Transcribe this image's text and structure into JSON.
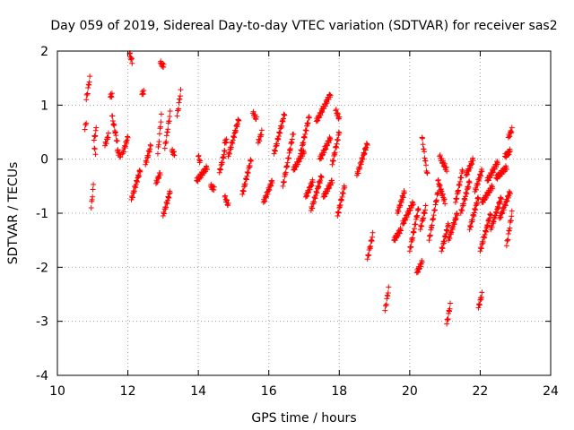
{
  "chart_data": {
    "type": "scatter",
    "title": "Day 059 of 2019, Sidereal Day-to-day VTEC variation (SDTVAR) for receiver sas2",
    "xlabel": "GPS time / hours",
    "ylabel": "SDTVAR / TECUs",
    "xlim": [
      10,
      24
    ],
    "ylim": [
      -4,
      2
    ],
    "xticks": [
      10,
      12,
      14,
      16,
      18,
      20,
      22,
      24
    ],
    "yticks": [
      -4,
      -3,
      -2,
      -1,
      0,
      1,
      2
    ],
    "grid": true,
    "marker": "+",
    "color": "#ff0000",
    "segments": [
      {
        "x0": 10.78,
        "x1": 10.82,
        "y0": 0.55,
        "y1": 0.7
      },
      {
        "x0": 10.82,
        "x1": 10.92,
        "y0": 1.1,
        "y1": 1.5
      },
      {
        "x0": 10.96,
        "x1": 11.02,
        "y0": -0.9,
        "y1": -0.5
      },
      {
        "x0": 11.04,
        "x1": 11.1,
        "y0": 0.35,
        "y1": 0.55
      },
      {
        "x0": 11.05,
        "x1": 11.08,
        "y0": 0.2,
        "y1": 0.1
      },
      {
        "x0": 11.35,
        "x1": 11.45,
        "y0": 0.25,
        "y1": 0.45
      },
      {
        "x0": 11.5,
        "x1": 11.55,
        "y0": 1.15,
        "y1": 1.2
      },
      {
        "x0": 11.55,
        "x1": 11.7,
        "y0": 0.8,
        "y1": 0.3
      },
      {
        "x0": 11.7,
        "x1": 11.8,
        "y0": 0.15,
        "y1": 0.05
      },
      {
        "x0": 11.85,
        "x1": 12.0,
        "y0": 0.1,
        "y1": 0.4
      },
      {
        "x0": 12.05,
        "x1": 12.12,
        "y0": 1.95,
        "y1": 1.8
      },
      {
        "x0": 12.1,
        "x1": 12.35,
        "y0": -0.75,
        "y1": -0.2
      },
      {
        "x0": 12.4,
        "x1": 12.45,
        "y0": 1.2,
        "y1": 1.25
      },
      {
        "x0": 12.5,
        "x1": 12.65,
        "y0": -0.1,
        "y1": 0.25
      },
      {
        "x0": 12.8,
        "x1": 12.92,
        "y0": -0.45,
        "y1": -0.25
      },
      {
        "x0": 12.85,
        "x1": 12.95,
        "y0": 0.1,
        "y1": 0.8
      },
      {
        "x0": 12.92,
        "x1": 13.02,
        "y0": 1.78,
        "y1": 1.72
      },
      {
        "x0": 13.0,
        "x1": 13.2,
        "y0": -1.05,
        "y1": -0.6
      },
      {
        "x0": 13.05,
        "x1": 13.2,
        "y0": 0.2,
        "y1": 0.85
      },
      {
        "x0": 13.25,
        "x1": 13.32,
        "y0": 0.15,
        "y1": 0.1
      },
      {
        "x0": 13.4,
        "x1": 13.5,
        "y0": 0.8,
        "y1": 1.25
      },
      {
        "x0": 13.95,
        "x1": 14.25,
        "y0": -0.4,
        "y1": -0.15
      },
      {
        "x0": 14.0,
        "x1": 14.05,
        "y0": 0.05,
        "y1": -0.05
      },
      {
        "x0": 14.35,
        "x1": 14.45,
        "y0": -0.5,
        "y1": -0.55
      },
      {
        "x0": 14.6,
        "x1": 14.75,
        "y0": -0.25,
        "y1": 0.15
      },
      {
        "x0": 14.75,
        "x1": 14.8,
        "y0": 0.3,
        "y1": 0.35
      },
      {
        "x0": 14.75,
        "x1": 14.85,
        "y0": -0.7,
        "y1": -0.85
      },
      {
        "x0": 14.85,
        "x1": 15.15,
        "y0": 0.05,
        "y1": 0.75
      },
      {
        "x0": 15.25,
        "x1": 15.5,
        "y0": -0.65,
        "y1": 0.0
      },
      {
        "x0": 15.55,
        "x1": 15.65,
        "y0": 0.85,
        "y1": 0.75
      },
      {
        "x0": 15.7,
        "x1": 15.8,
        "y0": 0.3,
        "y1": 0.5
      },
      {
        "x0": 15.85,
        "x1": 16.1,
        "y0": -0.8,
        "y1": -0.4
      },
      {
        "x0": 16.15,
        "x1": 16.45,
        "y0": 0.1,
        "y1": 0.85
      },
      {
        "x0": 16.4,
        "x1": 16.7,
        "y0": -0.5,
        "y1": 0.5
      },
      {
        "x0": 16.7,
        "x1": 17.0,
        "y0": -0.2,
        "y1": 0.15
      },
      {
        "x0": 16.9,
        "x1": 17.15,
        "y0": 0.1,
        "y1": 0.8
      },
      {
        "x0": 17.05,
        "x1": 17.25,
        "y0": -0.7,
        "y1": -0.4
      },
      {
        "x0": 17.2,
        "x1": 17.5,
        "y0": -0.95,
        "y1": -0.3
      },
      {
        "x0": 17.35,
        "x1": 17.75,
        "y0": 0.7,
        "y1": 1.2
      },
      {
        "x0": 17.45,
        "x1": 17.75,
        "y0": 0.0,
        "y1": 0.4
      },
      {
        "x0": 17.55,
        "x1": 17.8,
        "y0": -0.7,
        "y1": -0.4
      },
      {
        "x0": 17.8,
        "x1": 18.0,
        "y0": -0.1,
        "y1": 0.5
      },
      {
        "x0": 17.9,
        "x1": 18.0,
        "y0": 0.9,
        "y1": 0.75
      },
      {
        "x0": 17.95,
        "x1": 18.15,
        "y0": -1.05,
        "y1": -0.5
      },
      {
        "x0": 18.5,
        "x1": 18.8,
        "y0": -0.3,
        "y1": 0.3
      },
      {
        "x0": 18.8,
        "x1": 18.95,
        "y0": -1.85,
        "y1": -1.4
      },
      {
        "x0": 19.3,
        "x1": 19.4,
        "y0": -2.8,
        "y1": -2.4
      },
      {
        "x0": 19.55,
        "x1": 19.75,
        "y0": -1.5,
        "y1": -1.3
      },
      {
        "x0": 19.65,
        "x1": 19.85,
        "y0": -1.0,
        "y1": -0.6
      },
      {
        "x0": 19.8,
        "x1": 20.1,
        "y0": -1.2,
        "y1": -0.8
      },
      {
        "x0": 20.0,
        "x1": 20.25,
        "y0": -1.7,
        "y1": -0.9
      },
      {
        "x0": 20.2,
        "x1": 20.35,
        "y0": -2.1,
        "y1": -1.9
      },
      {
        "x0": 20.3,
        "x1": 20.45,
        "y0": -1.3,
        "y1": -0.9
      },
      {
        "x0": 20.35,
        "x1": 20.5,
        "y0": 0.4,
        "y1": -0.3
      },
      {
        "x0": 20.55,
        "x1": 20.8,
        "y0": -1.5,
        "y1": -0.6
      },
      {
        "x0": 20.8,
        "x1": 21.0,
        "y0": -0.4,
        "y1": -0.8
      },
      {
        "x0": 20.85,
        "x1": 21.05,
        "y0": 0.05,
        "y1": -0.2
      },
      {
        "x0": 20.9,
        "x1": 21.1,
        "y0": -1.7,
        "y1": -1.2
      },
      {
        "x0": 21.05,
        "x1": 21.15,
        "y0": -3.05,
        "y1": -2.7
      },
      {
        "x0": 21.1,
        "x1": 21.35,
        "y0": -1.5,
        "y1": -1.0
      },
      {
        "x0": 21.3,
        "x1": 21.5,
        "y0": -0.8,
        "y1": -0.2
      },
      {
        "x0": 21.45,
        "x1": 21.7,
        "y0": -1.0,
        "y1": -0.4
      },
      {
        "x0": 21.6,
        "x1": 21.8,
        "y0": -0.3,
        "y1": 0.0
      },
      {
        "x0": 21.7,
        "x1": 21.95,
        "y0": -1.3,
        "y1": -0.7
      },
      {
        "x0": 21.85,
        "x1": 22.05,
        "y0": -0.6,
        "y1": -0.2
      },
      {
        "x0": 21.95,
        "x1": 22.05,
        "y0": -2.75,
        "y1": -2.5
      },
      {
        "x0": 22.0,
        "x1": 22.3,
        "y0": -1.7,
        "y1": -1.0
      },
      {
        "x0": 22.05,
        "x1": 22.35,
        "y0": -0.8,
        "y1": -0.5
      },
      {
        "x0": 22.2,
        "x1": 22.5,
        "y0": -0.4,
        "y1": -0.05
      },
      {
        "x0": 22.3,
        "x1": 22.6,
        "y0": -1.3,
        "y1": -0.7
      },
      {
        "x0": 22.45,
        "x1": 22.75,
        "y0": -0.35,
        "y1": -0.15
      },
      {
        "x0": 22.55,
        "x1": 22.85,
        "y0": -1.1,
        "y1": -0.6
      },
      {
        "x0": 22.7,
        "x1": 22.85,
        "y0": 0.05,
        "y1": 0.15
      },
      {
        "x0": 22.75,
        "x1": 22.9,
        "y0": -1.6,
        "y1": -1.0
      },
      {
        "x0": 22.8,
        "x1": 22.9,
        "y0": 0.4,
        "y1": 0.55
      }
    ]
  }
}
